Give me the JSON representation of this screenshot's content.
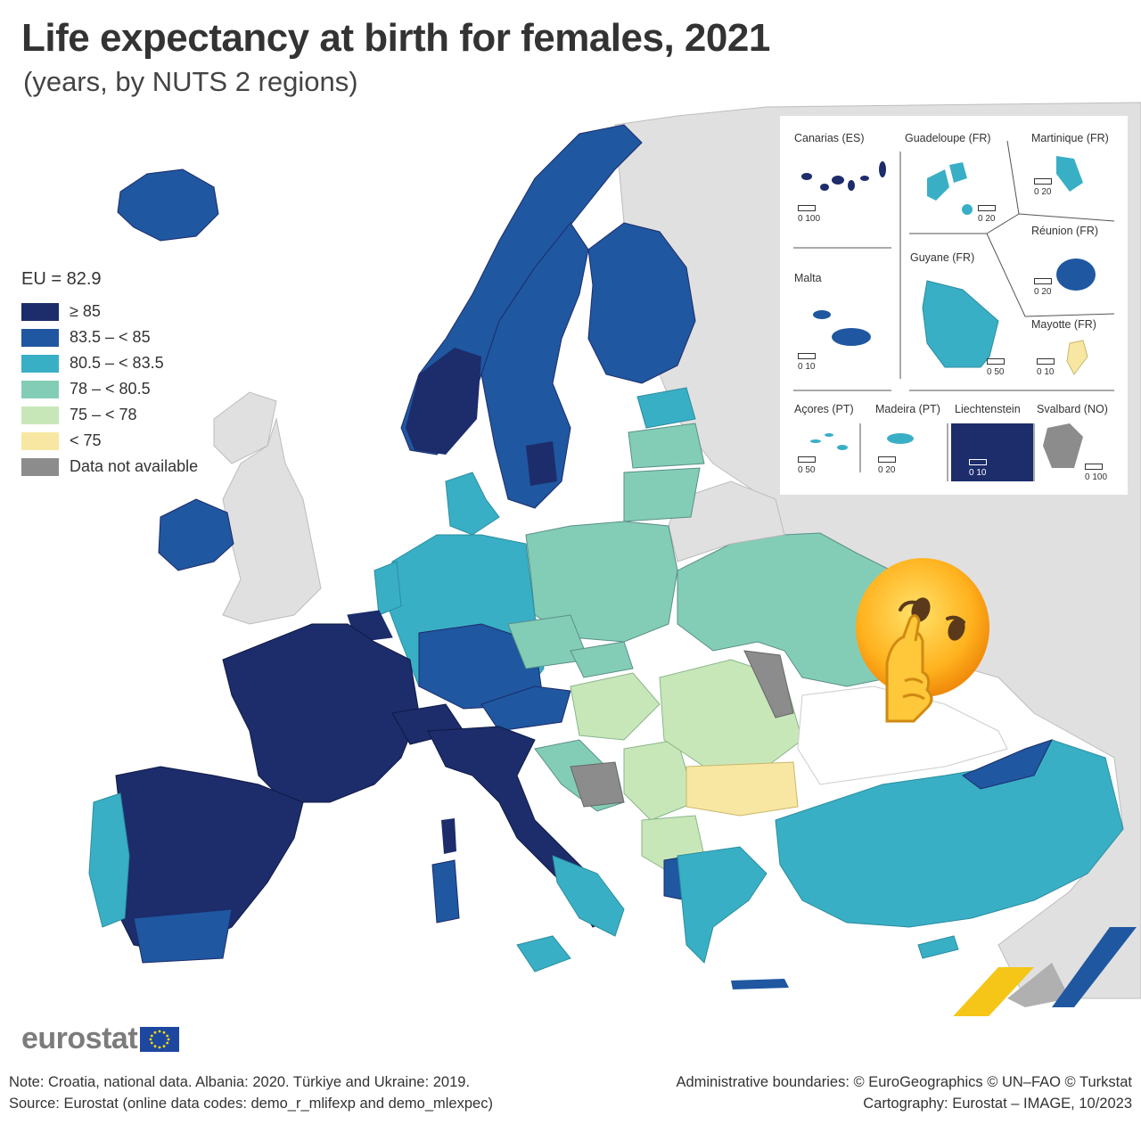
{
  "title": "Life expectancy at birth for females, 2021",
  "subtitle": "(years, by NUTS 2 regions)",
  "legend": {
    "title": "EU = 82.9",
    "classes": [
      {
        "label": "≥ 85",
        "color": "#1d2c6b"
      },
      {
        "label": "83.5 – < 85",
        "color": "#1f57a0"
      },
      {
        "label": "80.5 – < 83.5",
        "color": "#39afc6"
      },
      {
        "label": "78 – < 80.5",
        "color": "#83cdb6"
      },
      {
        "label": "75 – < 78",
        "color": "#c8e7b9"
      },
      {
        "label": "< 75",
        "color": "#f7e7a2"
      },
      {
        "label": "Data not available",
        "color": "#8c8c8c"
      }
    ]
  },
  "insets": [
    {
      "name": "Canarias (ES)",
      "scale": "0   100"
    },
    {
      "name": "Guadeloupe (FR)",
      "scale": "0   20"
    },
    {
      "name": "Martinique (FR)",
      "scale": "0   20"
    },
    {
      "name": "Réunion (FR)",
      "scale": "0   20"
    },
    {
      "name": "Malta",
      "scale": "0   10"
    },
    {
      "name": "Guyane (FR)",
      "scale": "0   50"
    },
    {
      "name": "Mayotte (FR)",
      "scale": "0   10"
    },
    {
      "name": "Açores (PT)",
      "scale": "0   50"
    },
    {
      "name": "Madeira (PT)",
      "scale": "0   20"
    },
    {
      "name": "Liechtenstein",
      "scale": "0   10"
    },
    {
      "name": "Svalbard (NO)",
      "scale": "0 100"
    }
  ],
  "logo": {
    "text": "eurostat"
  },
  "footer": {
    "note": "Note: Croatia, national data. Albania: 2020. Türkiye and Ukraine: 2019.",
    "source": "Source: Eurostat (online data codes: demo_r_mlifexp and demo_mlexpec)",
    "boundaries": "Administrative boundaries: © EuroGeographics © UN–FAO © Turkstat",
    "cartography": "Cartography: Eurostat – IMAGE, 10/2023"
  },
  "colors": {
    "non_eu": "#e0e0e0",
    "sea": "#ffffff",
    "border": "#2a3a6a"
  },
  "emoji_overlay": "shushing-face-emoji"
}
